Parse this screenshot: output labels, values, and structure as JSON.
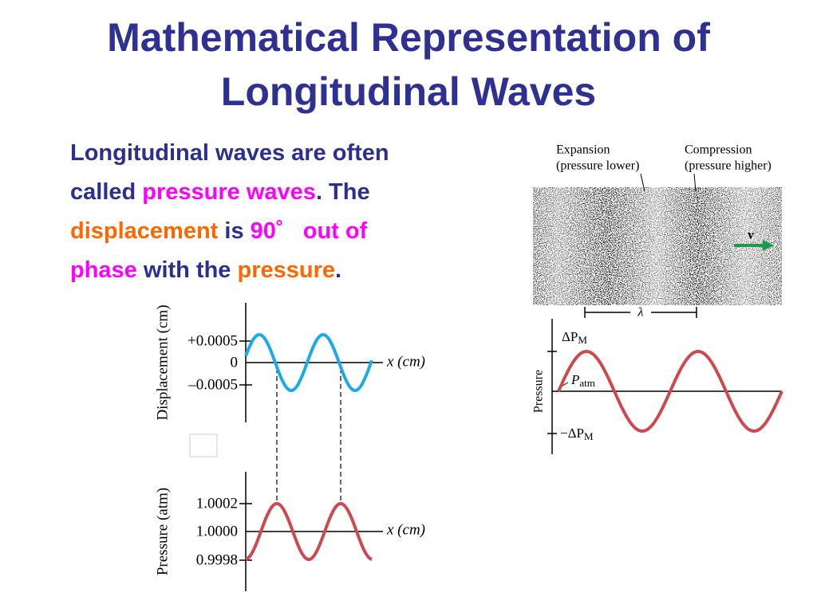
{
  "title": [
    "Mathematical Representation of",
    "Longitudinal Waves"
  ],
  "colors": {
    "title": "#2e3192",
    "text": "#2b2f8f",
    "emphasis": "#ff00ff",
    "accent": "#ff6600",
    "displacement_curve": "#1eaae7",
    "pressure_curve": "#cc4a4f",
    "arrow": "#1a9a4a"
  },
  "body": [
    [
      {
        "text": "Longitudinal waves are often",
        "color": "text"
      }
    ],
    [
      {
        "text": "called ",
        "color": "text"
      },
      {
        "text": "pressure waves",
        "color": "emphasis"
      },
      {
        "text": ". The",
        "color": "text"
      }
    ],
    [
      {
        "text": "displacement",
        "color": "accent"
      },
      {
        "text": " is ",
        "color": "text"
      },
      {
        "text": "90˚",
        "color": "emphasis"
      },
      {
        "text": "   out of",
        "color": "emphasis"
      }
    ],
    [
      {
        "text": "phase",
        "color": "emphasis"
      },
      {
        "text": " with the ",
        "color": "text"
      },
      {
        "text": "pressure",
        "color": "accent"
      },
      {
        "text": ".",
        "color": "text"
      }
    ]
  ],
  "left_figure": {
    "displacement": {
      "y_label": "Displacement (cm)",
      "ticks": [
        "+0.0005",
        "0",
        "–0.0005"
      ],
      "x_label": "x (cm)"
    },
    "pressure": {
      "y_label": "Pressure (atm)",
      "ticks": [
        "1.0002",
        "1.0000",
        "0.9998"
      ],
      "x_label": "x (cm)"
    }
  },
  "right_figure": {
    "expansion": [
      "Expansion",
      "(pressure lower)"
    ],
    "compression": [
      "Compression",
      "(pressure higher)"
    ],
    "velocity": "v",
    "wavelength": "λ",
    "y_label": "Pressure",
    "top_tick": {
      "main": "ΔP",
      "sub": "M"
    },
    "middle_tick": {
      "main": "P",
      "sub": "atm"
    },
    "bottom_tick": {
      "main": "−ΔP",
      "sub": "M"
    }
  }
}
